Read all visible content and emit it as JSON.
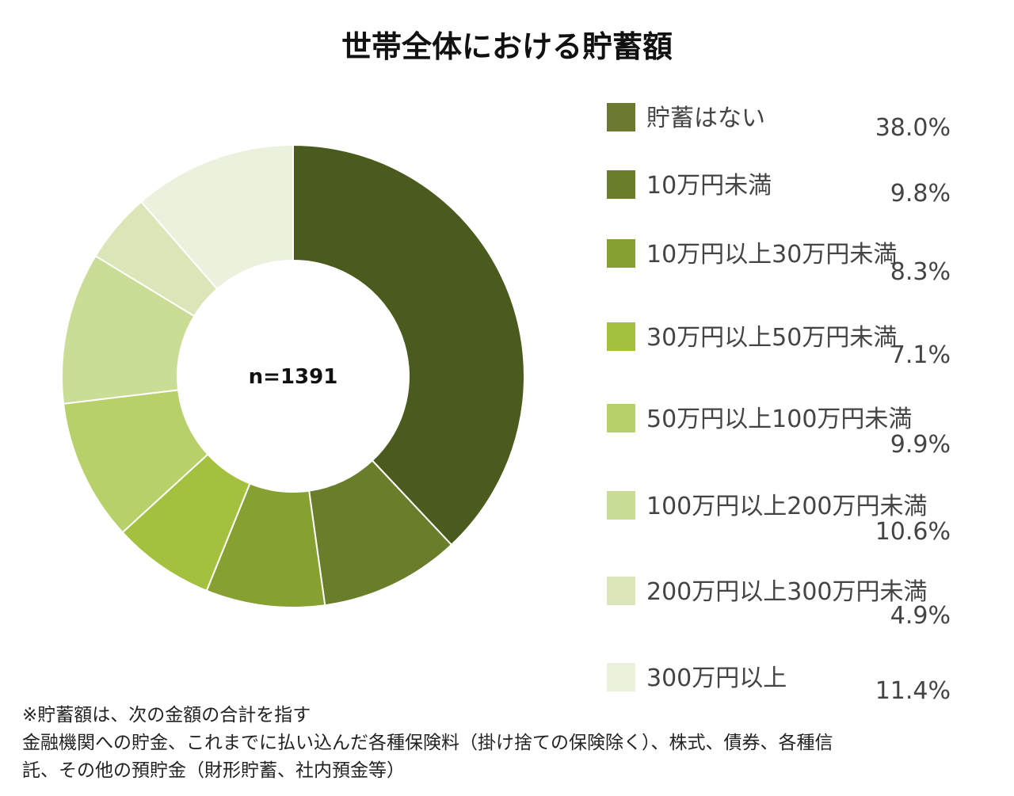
{
  "chart_data": {
    "type": "pie",
    "variant": "donut",
    "title": "世帯全体における貯蓄額",
    "center_label": "n=1391",
    "categories": [
      "貯蓄はない",
      "10万円未満",
      "10万円以上30万円未満",
      "30万円以上50万円未満",
      "50万円以上100万円未満",
      "100万円以上200万円未満",
      "200万円以上300万円未満",
      "300万円以上"
    ],
    "values": [
      38.0,
      9.8,
      8.3,
      7.1,
      9.9,
      10.6,
      4.9,
      11.4
    ],
    "value_labels": [
      "38.0%",
      "9.8%",
      "8.3%",
      "7.1%",
      "9.9%",
      "10.6%",
      "4.9%",
      "11.4%"
    ],
    "colors": [
      "#4b5a1d",
      "#6a7d2a",
      "#87a032",
      "#a3c13e",
      "#b8d06a",
      "#cadd96",
      "#dae6b8",
      "#ebf1dd"
    ],
    "legend_colors": [
      "#6b7a2e",
      "#6a7d2a",
      "#87a032",
      "#a3c13e",
      "#b8d06a",
      "#cadd96",
      "#dae6b8",
      "#ebf1dd"
    ],
    "legend": "right",
    "start": "top",
    "direction": "clockwise"
  },
  "note": {
    "lines": [
      "※貯蓄額は、次の金額の合計を指す",
      "金融機関への貯金、これまでに払い込んだ各種保険料（掛け捨ての保険除く）、株式、債券、各種信",
      "託、その他の預貯金（財形貯蓄、社内預金等）"
    ]
  }
}
